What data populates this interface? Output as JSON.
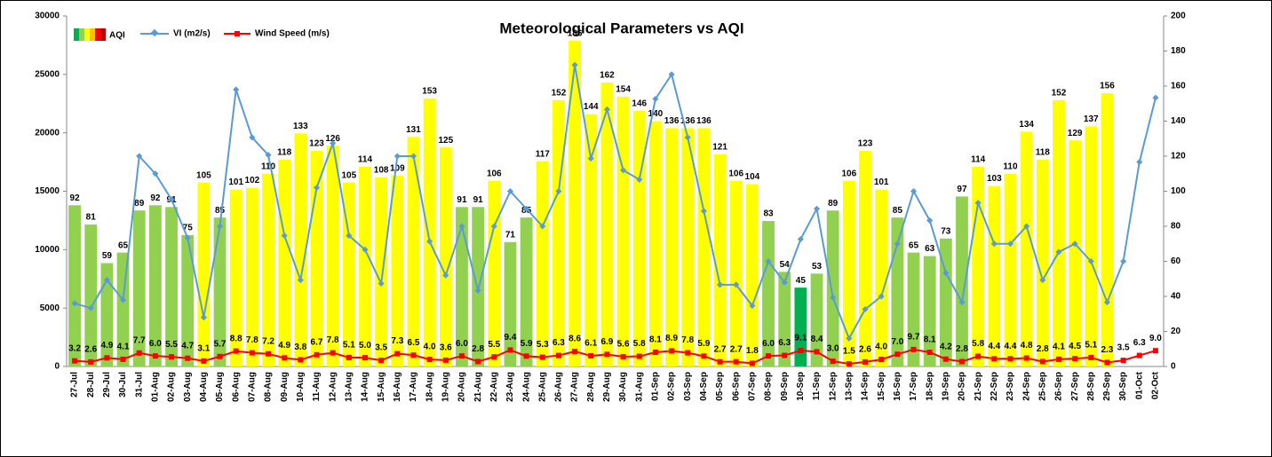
{
  "chart_data": {
    "type": "combo",
    "title": "Meteorological Parameters vs AQI",
    "categories": [
      "27-Jul",
      "28-Jul",
      "29-Jul",
      "30-Jul",
      "31-Jul",
      "01-Aug",
      "02-Aug",
      "03-Aug",
      "04-Aug",
      "05-Aug",
      "06-Aug",
      "07-Aug",
      "08-Aug",
      "09-Aug",
      "10-Aug",
      "11-Aug",
      "12-Aug",
      "13-Aug",
      "14-Aug",
      "15-Aug",
      "16-Aug",
      "17-Aug",
      "18-Aug",
      "19-Aug",
      "20-Aug",
      "21-Aug",
      "22-Aug",
      "23-Aug",
      "24-Aug",
      "25-Aug",
      "26-Aug",
      "27-Aug",
      "28-Aug",
      "29-Aug",
      "30-Aug",
      "31-Aug",
      "01-Sep",
      "02-Sep",
      "03-Sep",
      "04-Sep",
      "05-Sep",
      "06-Sep",
      "07-Sep",
      "08-Sep",
      "09-Sep",
      "10-Sep",
      "11-Sep",
      "12-Sep",
      "13-Sep",
      "14-Sep",
      "15-Sep",
      "16-Sep",
      "17-Sep",
      "18-Sep",
      "19-Sep",
      "20-Sep",
      "21-Sep",
      "22-Sep",
      "23-Sep",
      "24-Sep",
      "25-Sep",
      "26-Sep",
      "27-Sep",
      "28-Sep",
      "29-Sep",
      "30-Sep",
      "01-Oct",
      "02-Oct"
    ],
    "series": [
      {
        "name": "AQI",
        "type": "bar",
        "axis": "y2",
        "values": [
          92,
          81,
          59,
          65,
          89,
          92,
          91,
          75,
          105,
          85,
          101,
          102,
          110,
          118,
          133,
          123,
          126,
          105,
          114,
          108,
          109,
          131,
          153,
          125,
          91,
          91,
          106,
          71,
          85,
          117,
          152,
          186,
          144,
          162,
          154,
          146,
          140,
          136,
          136,
          136,
          121,
          106,
          104,
          83,
          54,
          45,
          53,
          89,
          106,
          123,
          101,
          85,
          65,
          63,
          73,
          97,
          114,
          103,
          110,
          134,
          118,
          152,
          129,
          137,
          156,
          null,
          null,
          null
        ],
        "colors": [
          "#92d050",
          "#92d050",
          "#92d050",
          "#92d050",
          "#92d050",
          "#92d050",
          "#92d050",
          "#92d050",
          "#ffff00",
          "#92d050",
          "#ffff00",
          "#ffff00",
          "#ffff00",
          "#ffff00",
          "#ffff00",
          "#ffff00",
          "#ffff00",
          "#ffff00",
          "#ffff00",
          "#ffff00",
          "#ffff00",
          "#ffff00",
          "#ffff00",
          "#ffff00",
          "#92d050",
          "#92d050",
          "#ffff00",
          "#92d050",
          "#92d050",
          "#ffff00",
          "#ffff00",
          "#ffff00",
          "#ffff00",
          "#ffff00",
          "#ffff00",
          "#ffff00",
          "#ffff00",
          "#ffff00",
          "#ffff00",
          "#ffff00",
          "#ffff00",
          "#ffff00",
          "#ffff00",
          "#92d050",
          "#92d050",
          "#00b050",
          "#92d050",
          "#92d050",
          "#ffff00",
          "#ffff00",
          "#ffff00",
          "#92d050",
          "#92d050",
          "#92d050",
          "#92d050",
          "#92d050",
          "#ffff00",
          "#ffff00",
          "#ffff00",
          "#ffff00",
          "#ffff00",
          "#ffff00",
          "#ffff00",
          "#ffff00",
          "#ffff00",
          null,
          null,
          null
        ]
      },
      {
        "name": "VI (m2/s)",
        "type": "line",
        "axis": "y",
        "color": "#5b9bd5",
        "values": [
          5400,
          5000,
          7400,
          5700,
          18000,
          16500,
          14300,
          11000,
          4200,
          12000,
          23700,
          19600,
          18100,
          11200,
          7400,
          15300,
          19100,
          11200,
          10000,
          7100,
          18000,
          18000,
          10700,
          7800,
          12000,
          6500,
          12000,
          15000,
          13500,
          12000,
          15000,
          25800,
          17800,
          22000,
          16800,
          16000,
          22900,
          25000,
          19600,
          13300,
          7000,
          7000,
          5200,
          9000,
          7200,
          10900,
          13500,
          5900,
          2400,
          4900,
          6000,
          10500,
          15000,
          12500,
          8000,
          5500,
          14000,
          10500,
          10500,
          12000,
          7400,
          9800,
          10500,
          9000,
          5500,
          9000,
          17500,
          23000
        ]
      },
      {
        "name": "Wind Speed (m/s)",
        "type": "line",
        "axis": "y2",
        "color": "#ff0000",
        "values": [
          3.2,
          2.6,
          4.9,
          4.1,
          7.7,
          6.0,
          5.5,
          4.7,
          3.1,
          5.7,
          8.8,
          7.8,
          7.2,
          4.9,
          3.8,
          6.7,
          7.8,
          5.1,
          5.0,
          3.5,
          7.3,
          6.5,
          4.0,
          3.6,
          6.0,
          2.8,
          5.5,
          9.4,
          5.9,
          5.3,
          6.3,
          8.6,
          6.1,
          6.9,
          5.6,
          5.8,
          8.1,
          8.9,
          7.8,
          5.9,
          2.7,
          2.7,
          1.8,
          6.0,
          6.3,
          9.1,
          8.4,
          3.0,
          1.5,
          2.6,
          4.0,
          7.0,
          9.7,
          8.1,
          4.2,
          2.8,
          5.8,
          4.4,
          4.4,
          4.8,
          2.8,
          4.1,
          4.5,
          5.1,
          2.3,
          3.5,
          6.3,
          9.0
        ],
        "value_labels": [
          "3.2",
          "2.6",
          "4.9",
          "4.1",
          "7.7",
          "6.0",
          "5.5",
          "4.7",
          "3.1",
          "5.7",
          "8.8",
          "7.8",
          "7.2",
          "4.9",
          "3.8",
          "6.7",
          "7.8",
          "5.1",
          "5.0",
          "3.5",
          "7.3",
          "6.5",
          "4.0",
          "3.6",
          "6.0",
          "2.8",
          "5.5",
          "9.4",
          "5.9",
          "5.3",
          "6.3",
          "8.6",
          "6.1",
          "6.9",
          "5.6",
          "5.8",
          "8.1",
          "8.9",
          "7.8",
          "5.9",
          "2.7",
          "2.7",
          "1.8",
          "6.0",
          "6.3",
          "9.1",
          "8.4",
          "3.0",
          "1.5",
          "2.6",
          "4.0",
          "7.0",
          "9.7",
          "8.1",
          "4.2",
          "2.8",
          "5.8",
          "4.4",
          "4.4",
          "4.8",
          "2.8",
          "4.1",
          "4.5",
          "5.1",
          "2.3",
          "3.5",
          "6.3",
          "9.0"
        ]
      }
    ],
    "ylim": [
      0,
      30000
    ],
    "yticks": [
      0,
      5000,
      10000,
      15000,
      20000,
      25000,
      30000
    ],
    "y2lim": [
      0,
      200
    ],
    "y2ticks": [
      0,
      20,
      40,
      60,
      80,
      100,
      120,
      140,
      160,
      180,
      200
    ]
  }
}
